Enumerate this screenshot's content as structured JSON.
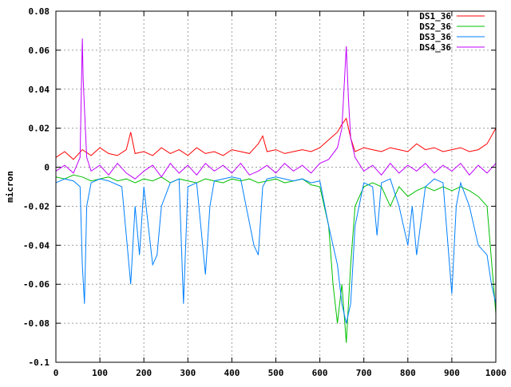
{
  "chart_data": {
    "type": "line",
    "title": "",
    "xlabel": "",
    "ylabel": "micron",
    "xlim": [
      0,
      1000
    ],
    "ylim": [
      -0.1,
      0.08
    ],
    "x_ticks": [
      0,
      100,
      200,
      300,
      400,
      500,
      600,
      700,
      800,
      900,
      1000
    ],
    "y_ticks": [
      -0.1,
      -0.08,
      -0.06,
      -0.04,
      -0.02,
      0,
      0.02,
      0.04,
      0.06,
      0.08
    ],
    "x_tick_labels": [
      "0",
      "100",
      "200",
      "300",
      "400",
      "500",
      "600",
      "700",
      "800",
      "900",
      "1000"
    ],
    "y_tick_labels": [
      "-0.1",
      "-0.08",
      "-0.06",
      "-0.04",
      "-0.02",
      "0",
      "0.02",
      "0.04",
      "0.06",
      "0.08"
    ],
    "grid": true,
    "legend_position": "top-right",
    "colors": {
      "DS1_36": "#ff0000",
      "DS2_36": "#00c000",
      "DS3_36": "#0080ff",
      "DS4_36": "#c000ff"
    },
    "series": [
      {
        "name": "DS1_36",
        "x": [
          0,
          20,
          40,
          60,
          80,
          100,
          120,
          140,
          160,
          170,
          180,
          200,
          220,
          240,
          260,
          280,
          300,
          320,
          340,
          360,
          380,
          400,
          420,
          440,
          460,
          470,
          480,
          500,
          520,
          540,
          560,
          580,
          600,
          620,
          640,
          650,
          660,
          670,
          680,
          700,
          720,
          740,
          760,
          780,
          800,
          820,
          840,
          860,
          880,
          900,
          920,
          940,
          960,
          980,
          1000
        ],
        "y": [
          0.005,
          0.008,
          0.004,
          0.009,
          0.006,
          0.01,
          0.007,
          0.006,
          0.009,
          0.018,
          0.007,
          0.008,
          0.006,
          0.01,
          0.007,
          0.009,
          0.006,
          0.01,
          0.007,
          0.008,
          0.006,
          0.009,
          0.008,
          0.007,
          0.012,
          0.016,
          0.008,
          0.009,
          0.007,
          0.008,
          0.009,
          0.008,
          0.01,
          0.014,
          0.018,
          0.022,
          0.025,
          0.015,
          0.008,
          0.01,
          0.009,
          0.008,
          0.01,
          0.009,
          0.008,
          0.012,
          0.009,
          0.01,
          0.008,
          0.009,
          0.01,
          0.008,
          0.009,
          0.012,
          0.02
        ]
      },
      {
        "name": "DS2_36",
        "x": [
          0,
          20,
          40,
          60,
          80,
          100,
          120,
          140,
          160,
          180,
          200,
          220,
          240,
          260,
          280,
          300,
          320,
          340,
          360,
          380,
          400,
          420,
          440,
          460,
          480,
          500,
          520,
          540,
          560,
          580,
          600,
          610,
          620,
          630,
          640,
          650,
          660,
          670,
          680,
          700,
          720,
          740,
          760,
          780,
          800,
          820,
          840,
          860,
          880,
          900,
          920,
          940,
          960,
          980,
          1000
        ],
        "y": [
          -0.005,
          -0.006,
          -0.004,
          -0.005,
          -0.007,
          -0.006,
          -0.005,
          -0.007,
          -0.006,
          -0.008,
          -0.006,
          -0.007,
          -0.005,
          -0.008,
          -0.006,
          -0.007,
          -0.008,
          -0.006,
          -0.007,
          -0.008,
          -0.006,
          -0.007,
          -0.006,
          -0.008,
          -0.007,
          -0.006,
          -0.008,
          -0.007,
          -0.006,
          -0.009,
          -0.01,
          -0.02,
          -0.03,
          -0.06,
          -0.08,
          -0.06,
          -0.09,
          -0.05,
          -0.02,
          -0.01,
          -0.008,
          -0.01,
          -0.02,
          -0.01,
          -0.015,
          -0.012,
          -0.01,
          -0.012,
          -0.01,
          -0.012,
          -0.01,
          -0.012,
          -0.015,
          -0.02,
          -0.075
        ]
      },
      {
        "name": "DS3_36",
        "x": [
          0,
          20,
          40,
          55,
          60,
          65,
          70,
          80,
          100,
          120,
          150,
          160,
          170,
          180,
          190,
          200,
          220,
          230,
          240,
          260,
          280,
          290,
          300,
          320,
          340,
          350,
          360,
          380,
          400,
          420,
          450,
          460,
          470,
          480,
          500,
          520,
          540,
          560,
          580,
          600,
          620,
          640,
          650,
          660,
          670,
          680,
          700,
          720,
          730,
          740,
          760,
          780,
          800,
          810,
          820,
          840,
          860,
          880,
          900,
          910,
          920,
          940,
          960,
          980,
          990,
          1000
        ],
        "y": [
          -0.008,
          -0.006,
          -0.007,
          -0.01,
          -0.05,
          -0.07,
          -0.02,
          -0.008,
          -0.006,
          -0.007,
          -0.01,
          -0.035,
          -0.06,
          -0.02,
          -0.045,
          -0.01,
          -0.05,
          -0.045,
          -0.02,
          -0.008,
          -0.006,
          -0.07,
          -0.01,
          -0.008,
          -0.055,
          -0.02,
          -0.007,
          -0.006,
          -0.005,
          -0.006,
          -0.04,
          -0.045,
          -0.01,
          -0.006,
          -0.005,
          -0.006,
          -0.007,
          -0.006,
          -0.008,
          -0.007,
          -0.03,
          -0.05,
          -0.07,
          -0.08,
          -0.07,
          -0.03,
          -0.008,
          -0.01,
          -0.035,
          -0.008,
          -0.006,
          -0.02,
          -0.04,
          -0.02,
          -0.045,
          -0.01,
          -0.006,
          -0.008,
          -0.065,
          -0.02,
          -0.008,
          -0.02,
          -0.04,
          -0.045,
          -0.06,
          -0.07
        ]
      },
      {
        "name": "DS4_36",
        "x": [
          0,
          20,
          40,
          55,
          60,
          62,
          65,
          70,
          80,
          100,
          120,
          140,
          160,
          180,
          200,
          220,
          240,
          260,
          280,
          300,
          320,
          340,
          360,
          380,
          400,
          420,
          440,
          460,
          480,
          500,
          520,
          540,
          560,
          580,
          600,
          620,
          640,
          650,
          660,
          665,
          670,
          680,
          700,
          720,
          740,
          760,
          780,
          800,
          820,
          840,
          860,
          880,
          900,
          920,
          940,
          960,
          980,
          1000
        ],
        "y": [
          -0.002,
          0.001,
          -0.003,
          0.005,
          0.066,
          0.045,
          0.03,
          0.005,
          -0.002,
          0.001,
          -0.004,
          0.002,
          -0.003,
          -0.006,
          -0.002,
          0.001,
          -0.005,
          0.002,
          -0.003,
          0.001,
          -0.004,
          0.002,
          -0.002,
          0.001,
          -0.003,
          0.002,
          -0.004,
          -0.002,
          0.001,
          -0.003,
          0.002,
          -0.002,
          0.001,
          -0.003,
          0.002,
          0.004,
          0.01,
          0.02,
          0.062,
          0.035,
          0.015,
          0.005,
          -0.002,
          0.001,
          -0.004,
          0.002,
          -0.003,
          0.001,
          -0.002,
          0.002,
          -0.003,
          0.001,
          -0.002,
          0.002,
          -0.004,
          0.001,
          -0.003,
          0.002
        ]
      }
    ]
  }
}
